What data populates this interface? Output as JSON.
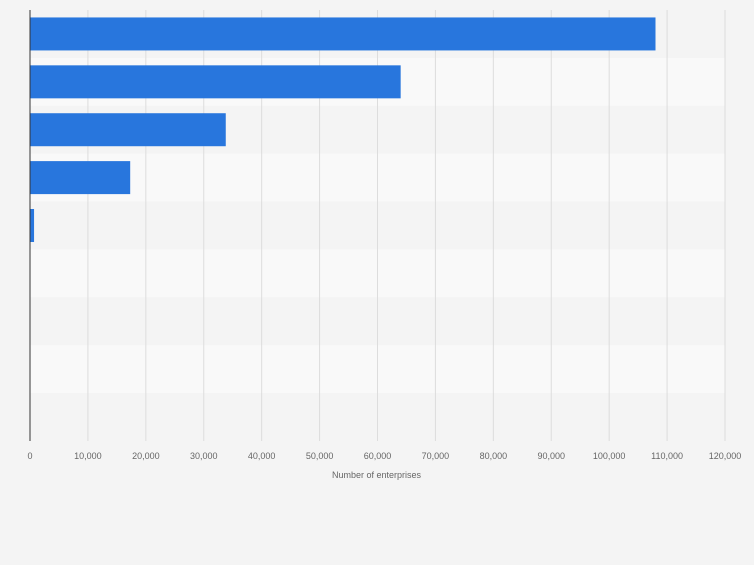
{
  "colors": {
    "background": "#f4f4f4",
    "bar": "#2876dd",
    "row_even": "#f4f4f4",
    "row_odd": "#f9f9f9",
    "grid": "#dddddd",
    "axis": "#333333",
    "tick_text": "#666666",
    "label_text": "#666666"
  },
  "chart_data": {
    "type": "bar",
    "orientation": "horizontal",
    "categories": [
      "",
      "",
      "",
      "",
      "",
      "",
      "",
      "",
      ""
    ],
    "values": [
      108000,
      64000,
      33800,
      17300,
      700,
      0,
      0,
      0,
      0
    ],
    "xlabel": "Number of enterprises",
    "xlim": [
      0,
      120000
    ],
    "xticks": [
      0,
      10000,
      20000,
      30000,
      40000,
      50000,
      60000,
      70000,
      80000,
      90000,
      100000,
      110000,
      120000
    ],
    "xtick_labels": [
      "0",
      "10,000",
      "20,000",
      "30,000",
      "40,000",
      "50,000",
      "60,000",
      "70,000",
      "80,000",
      "90,000",
      "100,000",
      "110,000",
      "120,000"
    ],
    "grid": true,
    "legend": "none"
  }
}
